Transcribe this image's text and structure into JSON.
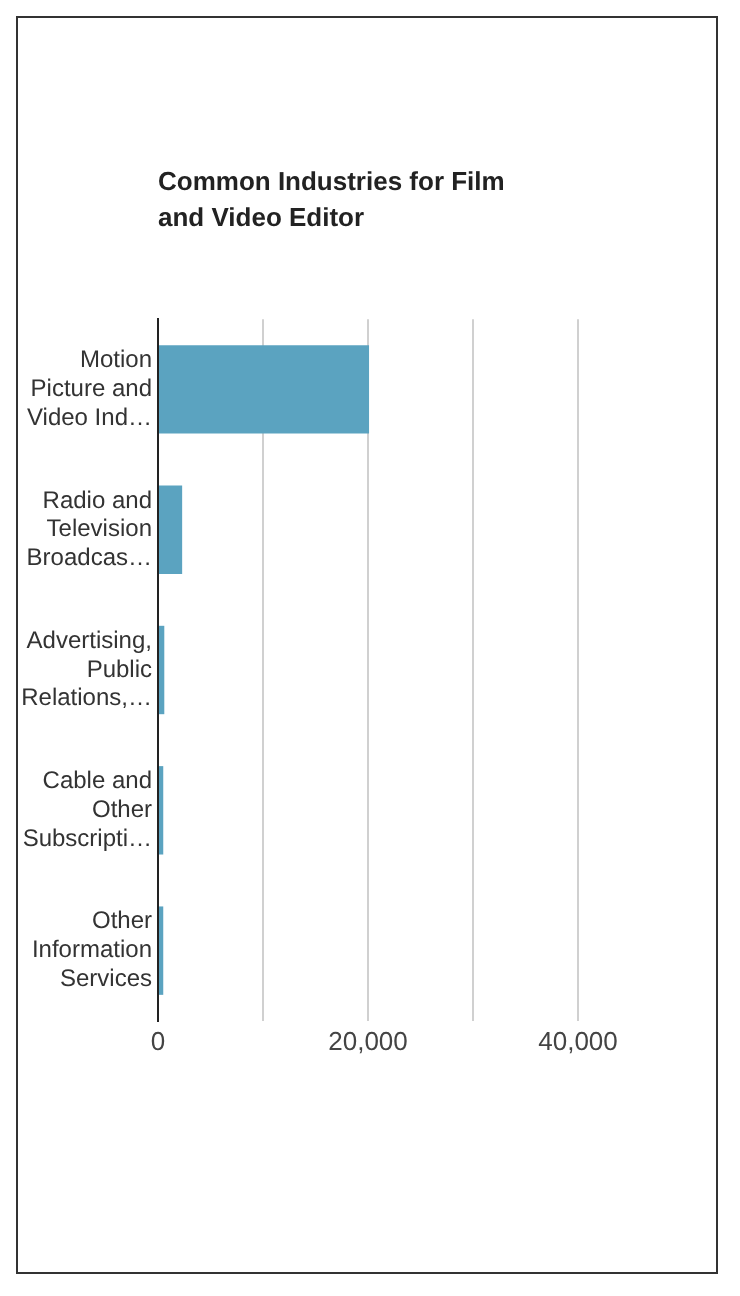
{
  "chart_data": {
    "type": "bar",
    "orientation": "horizontal",
    "title": "Common Industries for Film and Video Editor",
    "categories": [
      "Motion Picture and Video Ind…",
      "Radio and Television Broadcas…",
      "Advertising, Public Relations,…",
      "Cable and Other Subscripti…",
      "Other Information Services"
    ],
    "values": [
      20100,
      2300,
      600,
      500,
      500
    ],
    "color": "#5ba3c0",
    "xlim": [
      0,
      40000
    ],
    "xticks": [
      0,
      {
        "value": 10000,
        "label": null
      },
      {
        "value": 20000,
        "label": "20,000"
      },
      {
        "value": 30000,
        "label": null
      },
      {
        "value": 40000,
        "label": "40,000"
      }
    ],
    "grid": "x"
  }
}
